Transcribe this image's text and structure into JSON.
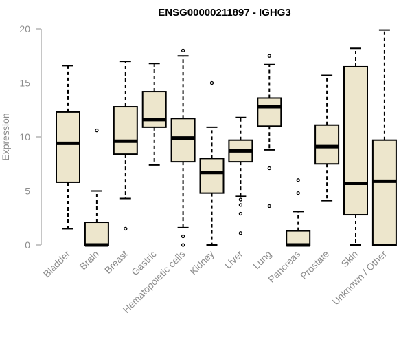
{
  "chart_data": {
    "type": "boxplot",
    "title": "ENSG00000211897 - IGHG3",
    "xlabel": "",
    "ylabel": "Expression",
    "ylim": [
      0,
      20
    ],
    "yticks": [
      0,
      5,
      10,
      15,
      20
    ],
    "box_fill": "#ede6cc",
    "categories": [
      "Bladder",
      "Brain",
      "Breast",
      "Gastric",
      "Hematopoietic cells",
      "Kidney",
      "Liver",
      "Lung",
      "Pancreas",
      "Prostate",
      "Skin",
      "Unknown / Other"
    ],
    "boxes": [
      {
        "min": 1.5,
        "q1": 5.8,
        "median": 9.4,
        "q3": 12.3,
        "max": 16.6,
        "outliers": []
      },
      {
        "min": 0.0,
        "q1": 0.0,
        "median": 0.0,
        "q3": 2.1,
        "max": 5.0,
        "outliers": [
          10.6
        ]
      },
      {
        "min": 4.3,
        "q1": 8.4,
        "median": 9.6,
        "q3": 12.8,
        "max": 17.0,
        "outliers": [
          1.5
        ]
      },
      {
        "min": 7.4,
        "q1": 10.9,
        "median": 11.6,
        "q3": 14.2,
        "max": 16.8,
        "outliers": []
      },
      {
        "min": 1.6,
        "q1": 7.7,
        "median": 9.9,
        "q3": 11.7,
        "max": 17.5,
        "outliers": [
          18.0,
          0.8,
          0.0
        ]
      },
      {
        "min": 0.0,
        "q1": 4.8,
        "median": 6.7,
        "q3": 8.0,
        "max": 10.9,
        "outliers": [
          15.0
        ]
      },
      {
        "min": 4.5,
        "q1": 7.7,
        "median": 8.7,
        "q3": 9.7,
        "max": 11.8,
        "outliers": [
          4.2,
          3.7,
          2.9,
          1.1
        ]
      },
      {
        "min": 8.8,
        "q1": 11.0,
        "median": 12.8,
        "q3": 13.6,
        "max": 16.7,
        "outliers": [
          17.5,
          7.1,
          3.6
        ]
      },
      {
        "min": 0.0,
        "q1": 0.0,
        "median": 0.0,
        "q3": 1.3,
        "max": 3.1,
        "outliers": [
          6.0,
          4.8
        ]
      },
      {
        "min": 4.1,
        "q1": 7.5,
        "median": 9.1,
        "q3": 11.1,
        "max": 15.7,
        "outliers": []
      },
      {
        "min": 0.0,
        "q1": 2.8,
        "median": 5.7,
        "q3": 16.5,
        "max": 18.2,
        "outliers": []
      },
      {
        "min": 0.0,
        "q1": 0.0,
        "median": 5.9,
        "q3": 9.7,
        "max": 19.9,
        "outliers": []
      }
    ]
  }
}
